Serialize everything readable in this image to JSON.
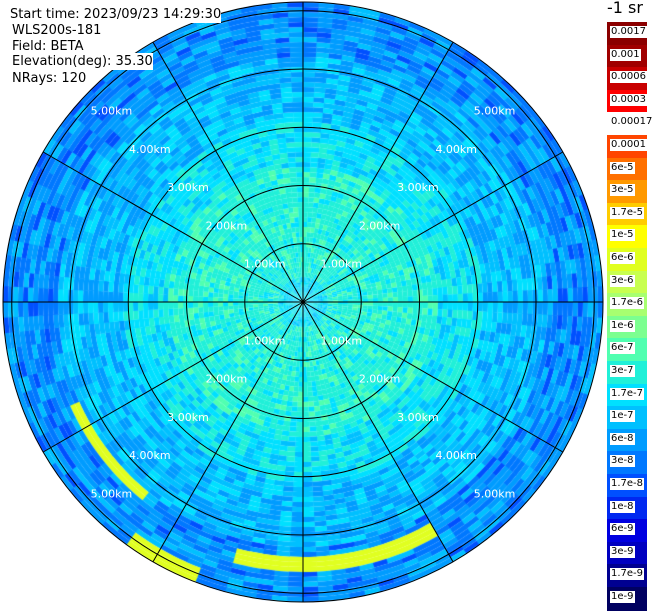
{
  "header": {
    "start_time": "Start time: 2023/09/23 14:29:30",
    "device": "WLS200s-181",
    "field": "Field: BETA",
    "elevation": "Elevation(deg): 35.30",
    "nrays": "NRays: 120"
  },
  "colorbar": {
    "title": "-1 sr",
    "labels": [
      "0.0017",
      "0.001",
      "0.0006",
      "0.0003",
      "0.00017",
      "0.0001",
      "6e-5",
      "3e-5",
      "1.7e-5",
      "1e-5",
      "6e-6",
      "3e-6",
      "1.7e-6",
      "1e-6",
      "6e-7",
      "3e-7",
      "1.7e-7",
      "1e-7",
      "6e-8",
      "3e-8",
      "1.7e-8",
      "1e-8",
      "6e-9",
      "3e-9",
      "1.7e-9",
      "1e-9"
    ],
    "colors": [
      "#8b0000",
      "#a00000",
      "#c80000",
      "#ff0000",
      "#ffffff",
      "#ff4500",
      "#ff7000",
      "#ff9900",
      "#ffcc00",
      "#ffff00",
      "#e0ff20",
      "#c8ff50",
      "#a8ff70",
      "#7cff90",
      "#50ffb0",
      "#20f0d8",
      "#00e0ff",
      "#00c0ff",
      "#009cff",
      "#0078ff",
      "#0050ff",
      "#0028f0",
      "#0000e0",
      "#0000c0",
      "#000090",
      "#000060"
    ]
  },
  "chart_data": {
    "type": "heatmap",
    "projection": "polar",
    "field": "BETA",
    "elevation_deg": 35.3,
    "n_rays": 120,
    "range_rings_km": [
      1,
      2,
      3,
      4,
      5
    ],
    "ring_labels": [
      "1.00km",
      "2.00km",
      "3.00km",
      "4.00km",
      "5.00km"
    ],
    "azimuth_lines_deg": [
      0,
      30,
      60,
      90,
      120,
      150,
      180,
      210,
      240,
      270,
      300,
      330
    ],
    "features": [
      {
        "description": "enhanced backscatter arc",
        "range_km": 4.5,
        "azimuth_deg": [
          150,
          195
        ]
      },
      {
        "description": "enhanced backscatter arc",
        "range_km": 4.3,
        "azimuth_deg": [
          220,
          245
        ]
      },
      {
        "description": "enhanced backscatter arc",
        "range_km": 5.0,
        "azimuth_deg": [
          200,
          215
        ]
      }
    ],
    "color_scale": "log",
    "value_range": [
      "1e-9",
      "0.0017"
    ]
  }
}
